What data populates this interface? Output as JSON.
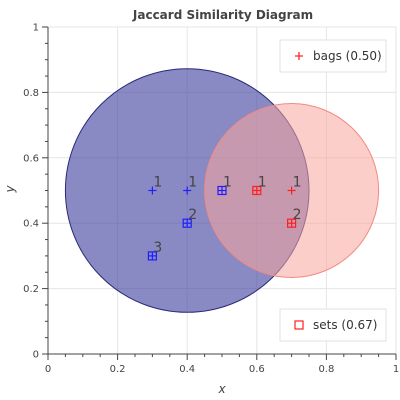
{
  "chart_data": {
    "type": "scatter",
    "title": "Jaccard Similarity Diagram",
    "xlabel": "x",
    "ylabel": "y",
    "xlim": [
      0,
      1
    ],
    "ylim": [
      0,
      1
    ],
    "xticks": [
      "0",
      "0.2",
      "0.4",
      "0.6",
      "0.8",
      "1"
    ],
    "yticks": [
      "0",
      "0.2",
      "0.4",
      "0.6",
      "0.8",
      "1"
    ],
    "grid": true,
    "circles": [
      {
        "cx": 0.4,
        "cy": 0.5,
        "r": 0.35,
        "color": "#3B3B9B"
      },
      {
        "cx": 0.7,
        "cy": 0.5,
        "r": 0.25,
        "color": "#F8A59E"
      }
    ],
    "series": [
      {
        "name": "bags (0.50)",
        "marker": "plus",
        "color_a": "#1f1fff",
        "color_b": "#ff1f1f",
        "points": [
          {
            "x": 0.3,
            "y": 0.5,
            "set": "a"
          },
          {
            "x": 0.4,
            "y": 0.5,
            "set": "a"
          },
          {
            "x": 0.5,
            "y": 0.5,
            "set": "a"
          },
          {
            "x": 0.6,
            "y": 0.5,
            "set": "b"
          },
          {
            "x": 0.7,
            "y": 0.5,
            "set": "b"
          },
          {
            "x": 0.4,
            "y": 0.4,
            "set": "a"
          },
          {
            "x": 0.7,
            "y": 0.4,
            "set": "b"
          },
          {
            "x": 0.3,
            "y": 0.3,
            "set": "a"
          }
        ]
      },
      {
        "name": "sets (0.67)",
        "marker": "square",
        "color_a": "#1f1fff",
        "color_b": "#ff1f1f",
        "points": [
          {
            "x": 0.5,
            "y": 0.5,
            "set": "a"
          },
          {
            "x": 0.6,
            "y": 0.5,
            "set": "b"
          },
          {
            "x": 0.4,
            "y": 0.4,
            "set": "a"
          },
          {
            "x": 0.7,
            "y": 0.4,
            "set": "b"
          },
          {
            "x": 0.3,
            "y": 0.3,
            "set": "a"
          }
        ]
      }
    ],
    "annotations": [
      {
        "x": 0.3,
        "y": 0.5,
        "text": "1"
      },
      {
        "x": 0.4,
        "y": 0.5,
        "text": "1"
      },
      {
        "x": 0.5,
        "y": 0.5,
        "text": "1"
      },
      {
        "x": 0.6,
        "y": 0.5,
        "text": "1"
      },
      {
        "x": 0.7,
        "y": 0.5,
        "text": "1"
      },
      {
        "x": 0.4,
        "y": 0.4,
        "text": "2"
      },
      {
        "x": 0.7,
        "y": 0.4,
        "text": "2"
      },
      {
        "x": 0.3,
        "y": 0.3,
        "text": "3"
      }
    ],
    "legends": [
      {
        "series": 0,
        "placement": "top-right"
      },
      {
        "series": 1,
        "placement": "bottom-right"
      }
    ]
  }
}
